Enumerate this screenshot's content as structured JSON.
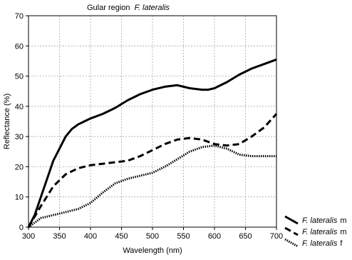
{
  "chart_data": {
    "type": "line",
    "title_prefix": "Gular region",
    "title_species": "F. lateralis",
    "xlabel": "Wavelength (nm)",
    "ylabel": "Reflectance (%)",
    "xlim": [
      300,
      700
    ],
    "ylim": [
      0,
      70
    ],
    "x_ticks": [
      300,
      350,
      400,
      450,
      500,
      550,
      600,
      650,
      700
    ],
    "y_ticks": [
      0,
      10,
      20,
      30,
      40,
      50,
      60,
      70
    ],
    "grid": true,
    "legend_position": "bottom-right",
    "series": [
      {
        "legend_species": "F. lateralis",
        "legend_sex": "m",
        "style": "solid",
        "color": "#000000",
        "x": [
          300,
          310,
          320,
          330,
          340,
          350,
          360,
          370,
          380,
          390,
          400,
          420,
          440,
          460,
          480,
          500,
          520,
          540,
          560,
          580,
          590,
          600,
          620,
          640,
          660,
          680,
          700
        ],
        "y": [
          0,
          4,
          10,
          16,
          22,
          26,
          30,
          32.5,
          34,
          35,
          36,
          37.5,
          39.5,
          42,
          44,
          45.5,
          46.5,
          47,
          46,
          45.5,
          45.5,
          46,
          48,
          50.5,
          52.5,
          54,
          55.5
        ]
      },
      {
        "legend_species": "F. lateralis",
        "legend_sex": "m",
        "style": "dashed",
        "color": "#000000",
        "x": [
          300,
          320,
          340,
          360,
          380,
          400,
          420,
          440,
          460,
          480,
          500,
          520,
          540,
          560,
          580,
          600,
          620,
          640,
          660,
          680,
          700
        ],
        "y": [
          0,
          7,
          13.5,
          17.5,
          19.5,
          20.5,
          21,
          21.5,
          22,
          23.5,
          25.5,
          27.5,
          29,
          29.5,
          29,
          27.5,
          27,
          27.5,
          30,
          33,
          37.5
        ]
      },
      {
        "legend_species": "F. lateralis",
        "legend_sex": "f",
        "style": "dotted",
        "color": "#000000",
        "x": [
          300,
          320,
          340,
          360,
          380,
          400,
          420,
          440,
          460,
          480,
          500,
          520,
          540,
          560,
          580,
          600,
          620,
          640,
          660,
          680,
          700
        ],
        "y": [
          0,
          3,
          4,
          5,
          6,
          8,
          11.5,
          14.5,
          16,
          17,
          18,
          20,
          22.5,
          25,
          26.5,
          27,
          26,
          24,
          23.5,
          23.5,
          23.5
        ]
      }
    ]
  }
}
